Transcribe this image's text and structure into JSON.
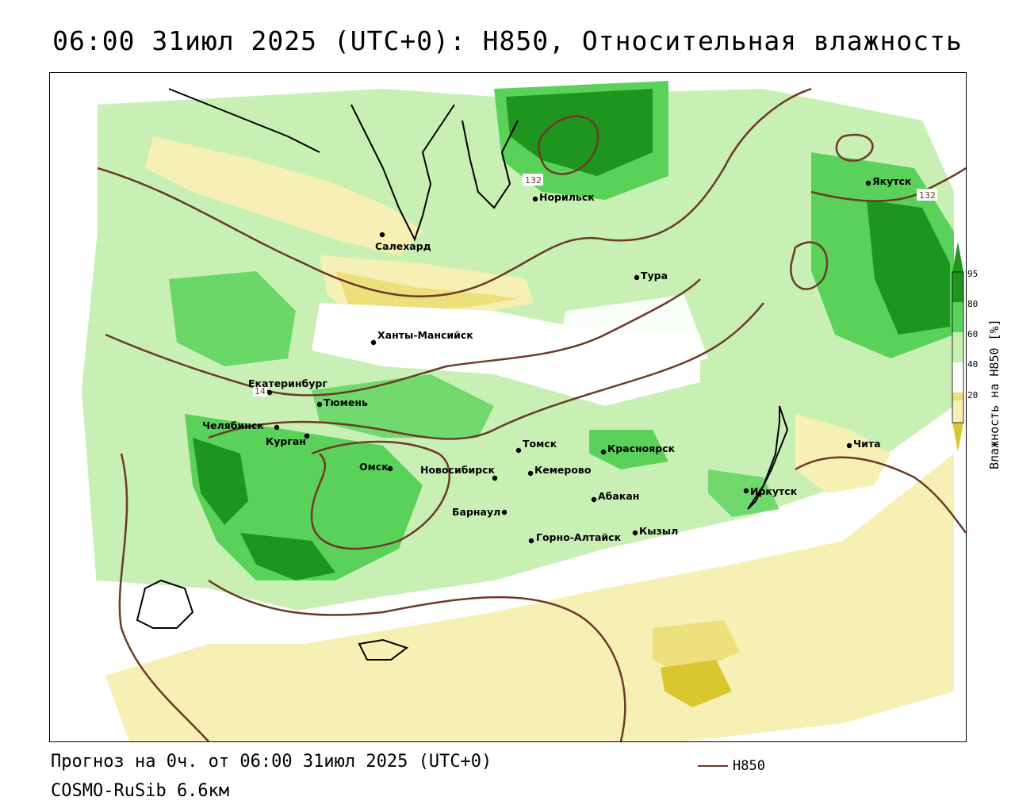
{
  "header": {
    "title": "06:00 31июл 2025 (UTC+0): H850, Относительная влажность"
  },
  "footer": {
    "forecast_line": "Прогноз на 0ч. от 06:00 31июл 2025 (UTC+0)",
    "model_line": "COSMO-RuSib 6.6км",
    "contour_legend_label": "H850",
    "contour_color": "#6b3a2a"
  },
  "colorbar": {
    "title": "Влажность на H850 [%]",
    "ticks": [
      "95",
      "80",
      "60",
      "40",
      "20"
    ],
    "colors": {
      "very_dry": "#d8c830",
      "dry": "#ede07a",
      "slightly_dry": "#f7f0b4",
      "neutral": "#ffffff",
      "moist": "#c8f0b4",
      "wet": "#5ad25a",
      "very_wet": "#1e961e"
    }
  },
  "map": {
    "cities": [
      {
        "name": "Норильск"
      },
      {
        "name": "Якутск"
      },
      {
        "name": "Салехард"
      },
      {
        "name": "Тура"
      },
      {
        "name": "Ханты-Мансийск"
      },
      {
        "name": "Екатеринбург"
      },
      {
        "name": "Тюмень"
      },
      {
        "name": "Челябинск"
      },
      {
        "name": "Курган"
      },
      {
        "name": "Омск"
      },
      {
        "name": "Новосибирск"
      },
      {
        "name": "Томск"
      },
      {
        "name": "Кемерово"
      },
      {
        "name": "Красноярск"
      },
      {
        "name": "Барнаул"
      },
      {
        "name": "Абакан"
      },
      {
        "name": "Горно-Алтайск"
      },
      {
        "name": "Кызыл"
      },
      {
        "name": "Иркутск"
      },
      {
        "name": "Чита"
      }
    ],
    "contour_labels": [
      "132",
      "132",
      "14"
    ]
  }
}
